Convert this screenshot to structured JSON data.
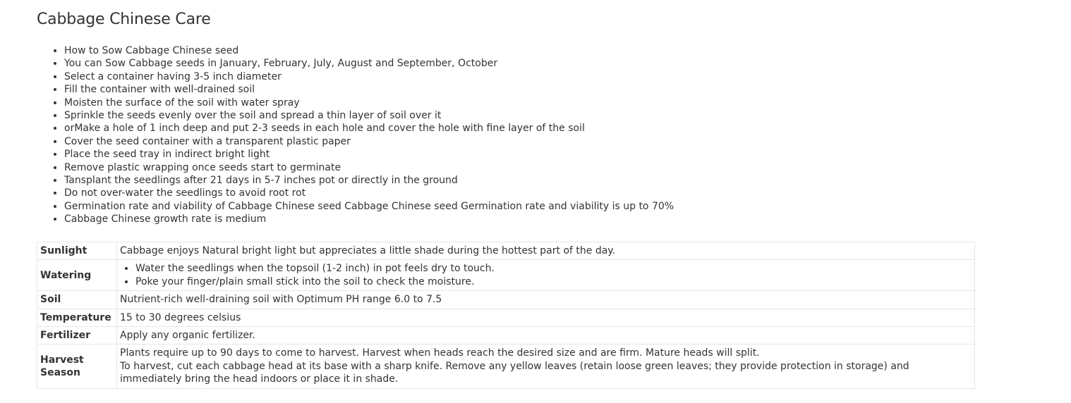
{
  "page": {
    "title": "Cabbage Chinese Care"
  },
  "steps": [
    "How to Sow Cabbage Chinese seed",
    "You can Sow Cabbage seeds in January, February, July, August and September, October",
    "Select a container having 3-5 inch diameter",
    "Fill the container with well-drained soil",
    "Moisten the surface of the soil with water spray",
    "Sprinkle the seeds evenly over the soil and spread a thin layer of soil over it",
    "orMake a hole of 1 inch deep and put 2-3 seeds in each hole and cover the hole with fine layer of the soil",
    "Cover the seed container with a transparent plastic paper",
    "Place the seed tray in indirect bright light",
    "Remove plastic wrapping once seeds start to germinate",
    "Tansplant the seedlings after 21 days in 5-7 inches pot or directly in the ground",
    "Do not over-water the seedlings to avoid root rot",
    "Germination rate and viability of Cabbage Chinese seed Cabbage Chinese seed Germination rate and viability is up to 70%",
    "Cabbage Chinese growth rate is medium"
  ],
  "care_table": {
    "sunlight": {
      "label": "Sunlight",
      "value": "Cabbage enjoys Natural bright light but appreciates a little shade during the hottest part of the day."
    },
    "watering": {
      "label": "Watering",
      "items": [
        "Water the seedlings when the topsoil (1-2 inch) in pot feels dry to touch.",
        "Poke your finger/plain small stick into the soil to check the moisture."
      ]
    },
    "soil": {
      "label": "Soil",
      "value": "Nutrient-rich well-draining soil with Optimum PH range 6.0 to 7.5"
    },
    "temperature": {
      "label": "Temperature",
      "value": "15 to 30 degrees celsius"
    },
    "fertilizer": {
      "label": "Fertilizer",
      "value": "Apply any organic fertilizer."
    },
    "harvest": {
      "label": "Harvest Season",
      "line1": "Plants require up to 90 days to come to harvest. Harvest when heads reach the desired size and are firm. Mature heads will split.",
      "line2": "To harvest, cut each cabbage head at its base with a sharp knife. Remove any yellow leaves (retain loose green leaves; they provide protection in storage) and immediately bring the head indoors or place it in shade."
    }
  }
}
